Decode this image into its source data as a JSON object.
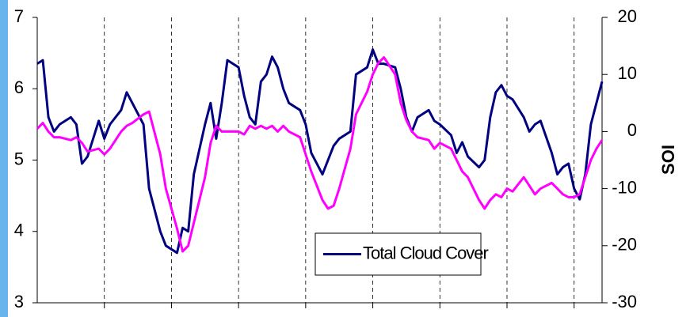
{
  "chart_data": {
    "type": "line",
    "y2label": "SOI",
    "xlim": [
      0,
      101
    ],
    "xticks": [
      12,
      24,
      36,
      48,
      60,
      72,
      84,
      96
    ],
    "ylim": [
      3,
      7
    ],
    "yticks": [
      3,
      4,
      5,
      6,
      7
    ],
    "y2lim": [
      -30,
      20
    ],
    "y2ticks": [
      -30,
      -20,
      -10,
      0,
      10,
      20
    ],
    "xgrid": true,
    "legend": "bottom-right",
    "series": [
      {
        "name": "Total Cloud Cover",
        "color": "#000080",
        "axis": "y",
        "x": [
          0,
          1,
          2,
          3,
          4,
          6,
          7,
          8,
          9,
          11,
          12,
          13,
          15,
          16,
          17,
          19,
          20,
          22,
          23,
          25,
          26,
          27,
          28,
          30,
          31,
          32,
          33,
          34,
          36,
          37,
          38,
          39,
          40,
          41,
          42,
          43,
          44,
          45,
          47,
          48,
          49,
          51,
          52,
          53,
          54,
          56,
          57,
          59,
          60,
          61,
          62,
          64,
          65,
          66,
          67,
          68,
          70,
          71,
          72,
          74,
          75,
          76,
          77,
          79,
          80,
          81,
          82,
          83,
          84,
          85,
          87,
          88,
          89,
          90,
          92,
          93,
          94,
          95,
          96,
          97,
          98,
          99,
          100,
          101
        ],
        "values": [
          6.35,
          6.4,
          5.6,
          5.4,
          5.5,
          5.6,
          5.5,
          4.95,
          5.05,
          5.55,
          5.3,
          5.5,
          5.7,
          5.95,
          5.8,
          5.5,
          4.6,
          4.0,
          3.8,
          3.7,
          4.05,
          4.0,
          4.8,
          5.5,
          5.8,
          5.3,
          5.8,
          6.4,
          6.3,
          5.9,
          5.6,
          5.5,
          6.1,
          6.2,
          6.45,
          6.3,
          6.0,
          5.8,
          5.7,
          5.5,
          5.1,
          4.8,
          5.0,
          5.2,
          5.3,
          5.4,
          6.2,
          6.3,
          6.55,
          6.35,
          6.35,
          6.3,
          6.0,
          5.6,
          5.4,
          5.6,
          5.7,
          5.55,
          5.5,
          5.35,
          5.1,
          5.25,
          5.05,
          4.9,
          5.0,
          5.6,
          5.95,
          6.05,
          5.9,
          5.85,
          5.6,
          5.4,
          5.5,
          5.55,
          5.1,
          4.8,
          4.9,
          4.95,
          4.6,
          4.45,
          4.8,
          5.5,
          5.8,
          6.1
        ]
      },
      {
        "color": "#ff00ff",
        "axis": "y2",
        "x": [
          0,
          1,
          2,
          3,
          4,
          6,
          7,
          8,
          9,
          11,
          12,
          13,
          15,
          16,
          17,
          19,
          20,
          22,
          23,
          25,
          26,
          27,
          28,
          30,
          31,
          32,
          33,
          34,
          36,
          37,
          38,
          39,
          40,
          41,
          42,
          43,
          44,
          45,
          47,
          48,
          49,
          51,
          52,
          53,
          54,
          56,
          57,
          59,
          60,
          61,
          62,
          64,
          65,
          66,
          67,
          68,
          70,
          71,
          72,
          74,
          75,
          76,
          77,
          79,
          80,
          81,
          82,
          83,
          84,
          85,
          87,
          88,
          89,
          90,
          92,
          93,
          94,
          95,
          96,
          97,
          98,
          99,
          100,
          101
        ],
        "values": [
          0.5,
          1.5,
          0,
          -1,
          -1,
          -1.5,
          -1,
          -2,
          -3.5,
          -3,
          -4,
          -3,
          0,
          1,
          1.5,
          3,
          3.5,
          -4,
          -10,
          -17,
          -21,
          -20,
          -16,
          -8,
          -2,
          1,
          0,
          0,
          0,
          -0.5,
          1,
          0.5,
          1,
          0.5,
          1,
          0,
          1,
          0,
          -1,
          -4,
          -7,
          -12,
          -13.5,
          -13,
          -10,
          -3,
          3,
          7,
          10,
          12,
          13,
          10,
          5,
          2,
          0,
          -1,
          -1.5,
          -3,
          -2,
          -3,
          -5,
          -7,
          -8,
          -12,
          -13.5,
          -12,
          -11,
          -11.5,
          -10,
          -10.5,
          -8,
          -9.5,
          -11,
          -10,
          -9,
          -10,
          -11,
          -11.5,
          -11.5,
          -11,
          -8,
          -5,
          -3,
          -1.5
        ]
      }
    ]
  }
}
